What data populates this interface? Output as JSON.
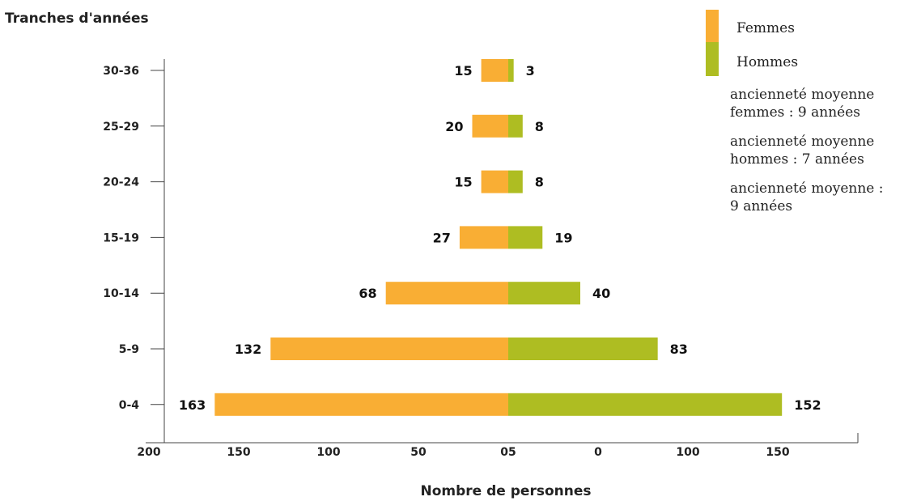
{
  "chart_data": {
    "type": "bar",
    "orientation": "horizontal-diverging",
    "ylabel": "Tranches d'années",
    "xlabel": "Nombre de personnes",
    "categories": [
      "30-36",
      "25-29",
      "20-24",
      "15-19",
      "10-14",
      "5-9",
      "0-4"
    ],
    "series": [
      {
        "name": "Femmes",
        "values": [
          15,
          20,
          15,
          27,
          68,
          132,
          163
        ],
        "color": "#F9AE34"
      },
      {
        "name": "Hommes",
        "values": [
          3,
          8,
          8,
          19,
          40,
          83,
          152
        ],
        "color": "#AEBD22"
      }
    ],
    "x_tick_labels": [
      "200",
      "150",
      "100",
      "50",
      "05",
      "0",
      "100",
      "150"
    ],
    "left_xlim": [
      0,
      200
    ],
    "right_xlim": [
      0,
      160
    ],
    "legend_placement": "top-right",
    "grid": false
  },
  "legend": {
    "notes": [
      [
        "ancienneté moyenne",
        "femmes : 9 années"
      ],
      [
        "ancienneté moyenne",
        "hommes : 7 années"
      ],
      [
        "ancienneté moyenne :",
        "9 années"
      ]
    ]
  }
}
